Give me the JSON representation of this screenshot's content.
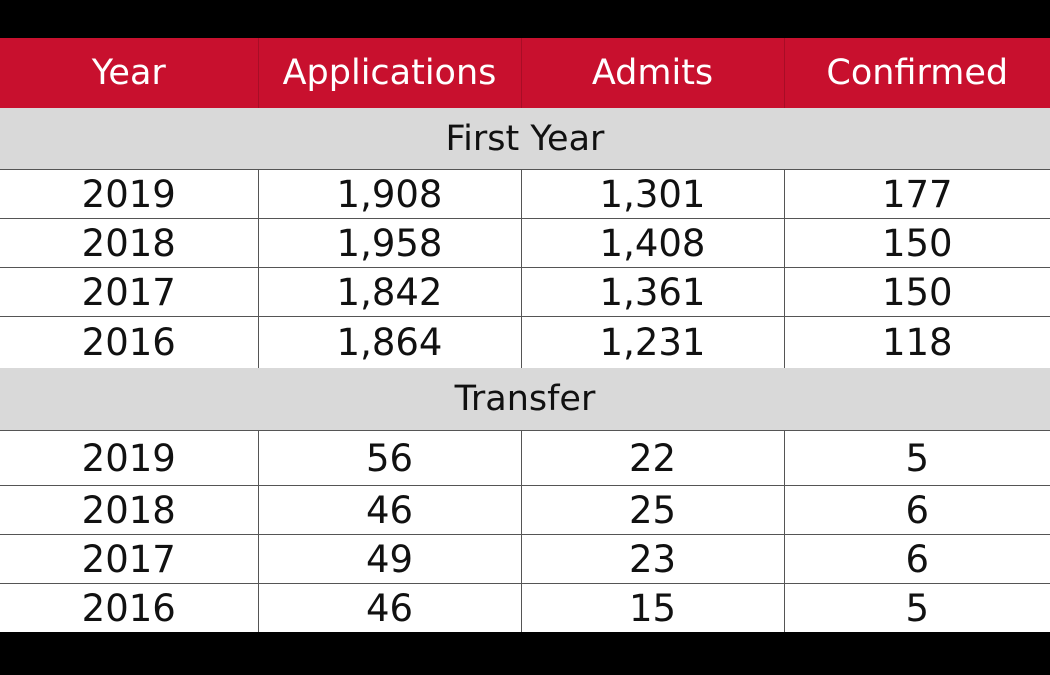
{
  "chart_data": {
    "type": "table",
    "columns": [
      "Year",
      "Applications",
      "Admits",
      "Confirmed"
    ],
    "sections": [
      {
        "label": "First Year",
        "rows": [
          [
            "2019",
            "1,908",
            "1,301",
            "177"
          ],
          [
            "2018",
            "1,958",
            "1,408",
            "150"
          ],
          [
            "2017",
            "1,842",
            "1,361",
            "150"
          ],
          [
            "2016",
            "1,864",
            "1,231",
            "118"
          ]
        ]
      },
      {
        "label": "Transfer",
        "rows": [
          [
            "2019",
            "56",
            "22",
            "5"
          ],
          [
            "2018",
            "46",
            "25",
            "6"
          ],
          [
            "2017",
            "49",
            "23",
            "6"
          ],
          [
            "2016",
            "46",
            "15",
            "5"
          ]
        ]
      }
    ]
  },
  "colors": {
    "header_background": "#c8102e",
    "header_text": "#ffffff",
    "section_background": "#d9d9d9",
    "page_background": "#000000"
  }
}
